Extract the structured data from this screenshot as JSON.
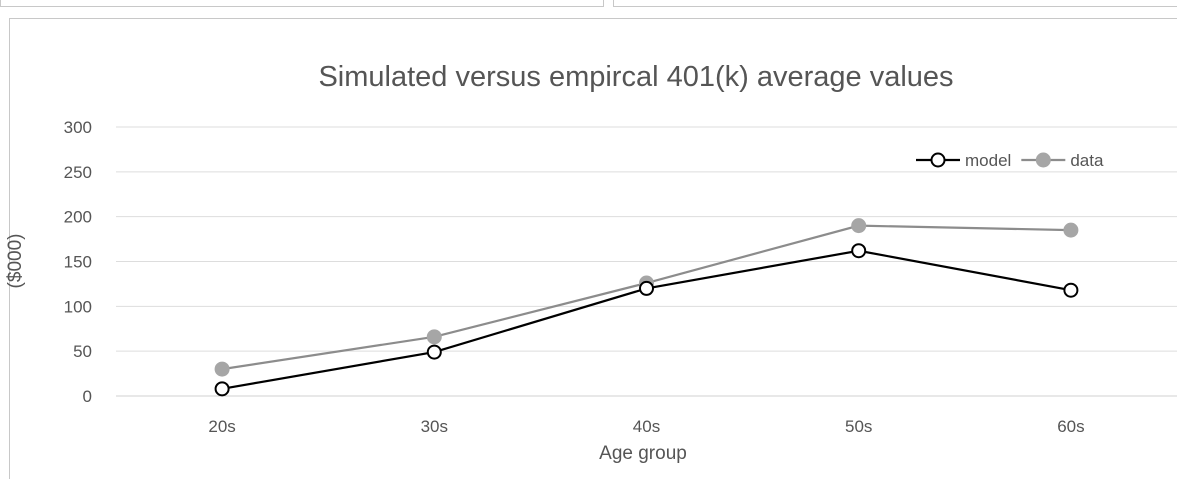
{
  "chart_data": {
    "type": "line",
    "title": "Simulated versus empircal 401(k) average values",
    "xlabel": "Age group",
    "ylabel": "($000)",
    "categories": [
      "20s",
      "30s",
      "40s",
      "50s",
      "60s"
    ],
    "ylim": [
      0,
      300
    ],
    "yticks": [
      0,
      50,
      100,
      150,
      200,
      250,
      300
    ],
    "grid": true,
    "legend_position": "top-right",
    "series": [
      {
        "name": "model",
        "values": [
          8,
          49,
          120,
          162,
          118
        ],
        "color": "#000000",
        "marker": "open-circle"
      },
      {
        "name": "data",
        "values": [
          30,
          66,
          126,
          190,
          185
        ],
        "color": "#8c8c8c",
        "marker": "filled-circle"
      }
    ]
  }
}
